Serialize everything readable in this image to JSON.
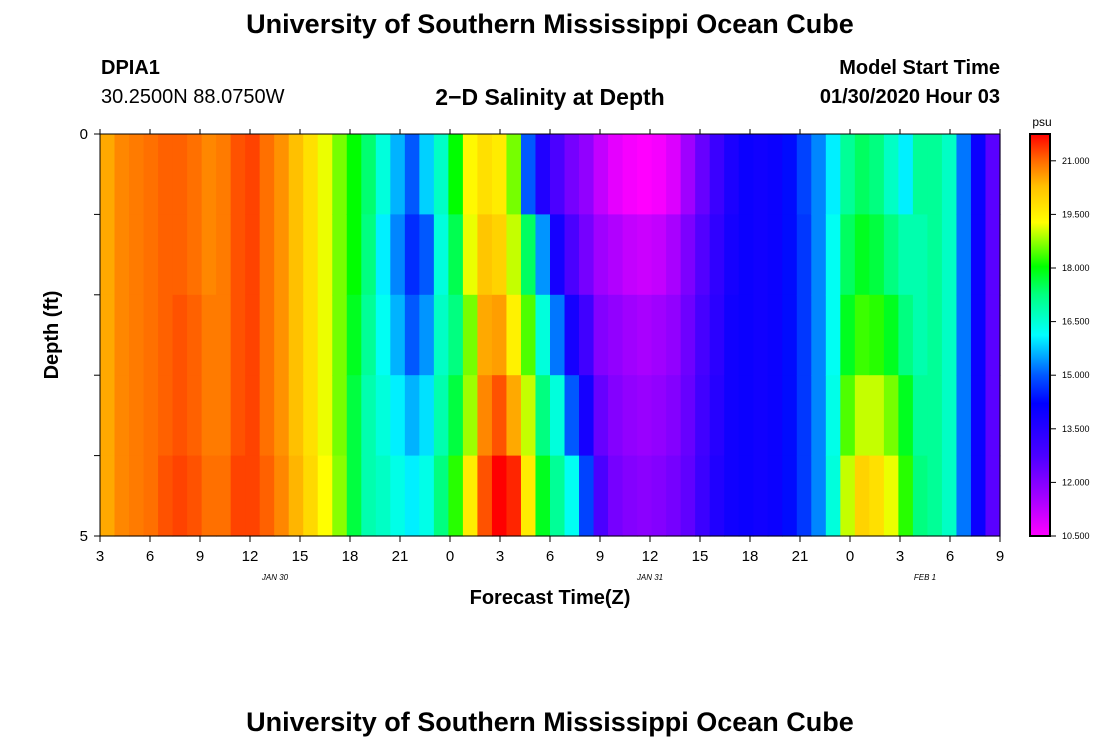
{
  "header": {
    "title": "University of Southern Mississippi Ocean Cube",
    "station_id": "DPIA1",
    "station_coords": "30.2500N 88.0750W",
    "subtitle": "2−D Salinity at Depth",
    "model_label": "Model Start Time",
    "model_time": "01/30/2020 Hour 03"
  },
  "footer": {
    "title": "University of Southern Mississippi Ocean Cube"
  },
  "chart_data": {
    "type": "heatmap",
    "title": "2−D Salinity at Depth",
    "xlabel": "Forecast Time(Z)",
    "ylabel": "Depth (ft)",
    "x_tick_labels": [
      "3",
      "6",
      "9",
      "12",
      "15",
      "18",
      "21",
      "0",
      "3",
      "6",
      "9",
      "12",
      "15",
      "18",
      "21",
      "0",
      "3",
      "6",
      "9"
    ],
    "y_tick_labels": [
      "0",
      "5"
    ],
    "y_range": [
      0,
      5
    ],
    "day_labels": [
      {
        "text": "JAN 30",
        "at_tick": 3.5
      },
      {
        "text": "JAN 31",
        "at_tick": 11
      },
      {
        "text": "FEB 1",
        "at_tick": 16.5
      }
    ],
    "colorbar": {
      "unit": "psu",
      "tick_labels": [
        "21.000",
        "19.500",
        "18.000",
        "16.500",
        "15.000",
        "13.500",
        "12.000",
        "10.500"
      ],
      "range": [
        10.5,
        21.75
      ]
    },
    "depth_bands": 5,
    "time_columns": 62,
    "z_columns": [
      [
        20.5,
        20.5,
        20.5,
        20.5,
        20.5
      ],
      [
        20.8,
        20.8,
        20.8,
        20.8,
        20.8
      ],
      [
        20.9,
        20.9,
        20.9,
        20.9,
        20.9
      ],
      [
        21.0,
        21.0,
        21.0,
        21.0,
        21.0
      ],
      [
        21.1,
        21.1,
        21.1,
        21.1,
        21.2
      ],
      [
        21.1,
        21.1,
        21.2,
        21.2,
        21.3
      ],
      [
        21.0,
        21.0,
        21.1,
        21.1,
        21.2
      ],
      [
        20.8,
        20.8,
        20.9,
        20.9,
        21.0
      ],
      [
        20.9,
        20.9,
        20.9,
        20.9,
        21.0
      ],
      [
        21.2,
        21.2,
        21.2,
        21.2,
        21.3
      ],
      [
        21.3,
        21.3,
        21.3,
        21.3,
        21.3
      ],
      [
        21.0,
        21.0,
        21.0,
        21.0,
        21.1
      ],
      [
        20.7,
        20.7,
        20.7,
        20.7,
        20.8
      ],
      [
        20.3,
        20.3,
        20.3,
        20.3,
        20.4
      ],
      [
        19.8,
        19.8,
        19.8,
        19.8,
        19.9
      ],
      [
        19.2,
        19.2,
        19.2,
        19.2,
        19.3
      ],
      [
        18.6,
        18.6,
        18.6,
        18.6,
        18.7
      ],
      [
        18.0,
        18.0,
        17.8,
        17.6,
        17.6
      ],
      [
        17.3,
        17.2,
        17.0,
        16.8,
        16.8
      ],
      [
        16.4,
        16.0,
        16.2,
        16.4,
        16.6
      ],
      [
        15.6,
        15.3,
        15.6,
        16.0,
        16.3
      ],
      [
        15.0,
        14.6,
        15.0,
        15.6,
        16.0
      ],
      [
        15.8,
        15.0,
        15.4,
        15.9,
        16.3
      ],
      [
        16.6,
        16.4,
        16.6,
        16.8,
        17.2
      ],
      [
        18.0,
        17.5,
        17.2,
        17.6,
        18.2
      ],
      [
        19.4,
        19.2,
        18.6,
        18.8,
        19.6
      ],
      [
        19.8,
        20.2,
        20.5,
        20.8,
        21.2
      ],
      [
        19.6,
        20.0,
        20.6,
        21.2,
        21.8
      ],
      [
        18.6,
        19.0,
        19.5,
        20.5,
        21.5
      ],
      [
        15.0,
        17.4,
        18.4,
        19.0,
        19.6
      ],
      [
        13.6,
        15.4,
        16.4,
        17.2,
        17.8
      ],
      [
        12.8,
        13.8,
        15.2,
        16.4,
        17.0
      ],
      [
        12.2,
        12.8,
        13.8,
        15.0,
        16.2
      ],
      [
        11.8,
        12.2,
        13.0,
        13.8,
        14.8
      ],
      [
        11.2,
        11.6,
        12.0,
        12.4,
        12.8
      ],
      [
        10.8,
        11.4,
        11.8,
        12.0,
        12.2
      ],
      [
        10.6,
        11.2,
        11.6,
        11.8,
        12.0
      ],
      [
        10.5,
        11.1,
        11.5,
        11.7,
        11.9
      ],
      [
        10.6,
        11.2,
        11.6,
        11.8,
        12.0
      ],
      [
        10.9,
        11.5,
        11.8,
        12.0,
        12.2
      ],
      [
        11.6,
        12.1,
        12.3,
        12.4,
        12.5
      ],
      [
        12.4,
        12.7,
        12.9,
        13.0,
        13.1
      ],
      [
        13.1,
        13.3,
        13.4,
        13.5,
        13.6
      ],
      [
        13.7,
        13.8,
        13.9,
        13.9,
        13.9
      ],
      [
        14.0,
        14.0,
        14.0,
        14.0,
        14.0
      ],
      [
        13.9,
        13.9,
        13.9,
        13.9,
        13.9
      ],
      [
        14.0,
        14.0,
        14.0,
        14.0,
        14.0
      ],
      [
        14.3,
        14.3,
        14.3,
        14.3,
        14.3
      ],
      [
        14.8,
        14.7,
        14.7,
        14.7,
        14.7
      ],
      [
        15.3,
        15.3,
        15.3,
        15.3,
        15.3
      ],
      [
        16.0,
        16.2,
        16.2,
        16.3,
        16.4
      ],
      [
        17.0,
        17.4,
        17.8,
        18.4,
        19.0
      ],
      [
        17.4,
        17.8,
        18.3,
        19.0,
        20.0
      ],
      [
        17.2,
        17.6,
        18.2,
        19.0,
        19.8
      ],
      [
        16.6,
        17.2,
        17.8,
        18.6,
        19.2
      ],
      [
        16.0,
        16.8,
        17.2,
        17.8,
        18.2
      ],
      [
        17.0,
        16.8,
        16.8,
        17.0,
        17.2
      ],
      [
        17.0,
        17.0,
        17.0,
        17.0,
        17.0
      ],
      [
        16.6,
        16.6,
        16.6,
        16.6,
        16.6
      ],
      [
        15.2,
        15.2,
        15.2,
        15.2,
        15.2
      ],
      [
        14.0,
        14.0,
        14.0,
        14.0,
        14.0
      ],
      [
        12.6,
        12.6,
        12.6,
        12.6,
        12.6
      ]
    ]
  }
}
